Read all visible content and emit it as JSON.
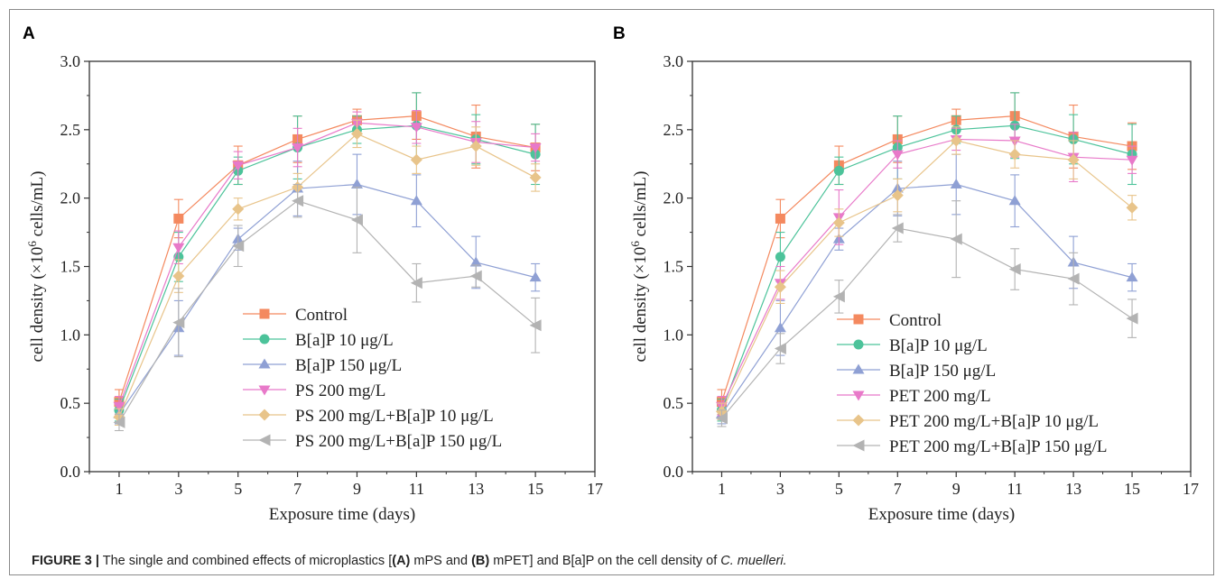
{
  "caption": {
    "figure_label": "FIGURE 3 |",
    "text_1": " The single and combined effects of microplastics [",
    "label_a": "(A)",
    "text_2": " mPS and ",
    "label_b": "(B)",
    "text_3": " mPET] and B[a]P on the cell density of ",
    "species": "C. muelleri.",
    "text_4": ""
  },
  "chart_data": [
    {
      "panel": "A",
      "type": "line",
      "xlabel": "Exposure time (days)",
      "ylabel_pre": "cell density (×10",
      "ylabel_sup": "6",
      "ylabel_post": " cells/mL)",
      "xlim": [
        0,
        17
      ],
      "ylim": [
        0,
        3.0
      ],
      "xticks": [
        1,
        3,
        5,
        7,
        9,
        11,
        13,
        15,
        17
      ],
      "yticks": [
        "0.0",
        "0.5",
        "1.0",
        "1.5",
        "2.0",
        "2.5",
        "3.0"
      ],
      "x": [
        1,
        3,
        5,
        7,
        9,
        11,
        13,
        15
      ],
      "legend_position": "bottom-center",
      "series": [
        {
          "name": "Control",
          "color": "#f4895f",
          "marker": "square",
          "values": [
            0.51,
            1.85,
            2.24,
            2.43,
            2.57,
            2.6,
            2.45,
            2.37
          ],
          "errors": [
            0.09,
            0.14,
            0.14,
            0.17,
            0.08,
            0.17,
            0.23,
            0.17
          ]
        },
        {
          "name": "B[a]P 10 μg/L",
          "color": "#4cc39a",
          "marker": "circle",
          "values": [
            0.45,
            1.57,
            2.2,
            2.37,
            2.5,
            2.53,
            2.43,
            2.32
          ],
          "errors": [
            0.08,
            0.18,
            0.1,
            0.23,
            0.1,
            0.24,
            0.18,
            0.22
          ]
        },
        {
          "name": "B[a]P 150 μg/L",
          "color": "#8fa0d4",
          "marker": "triangle-up",
          "values": [
            0.42,
            1.05,
            1.7,
            2.07,
            2.1,
            1.98,
            1.53,
            1.42
          ],
          "errors": [
            0.07,
            0.2,
            0.08,
            0.2,
            0.22,
            0.19,
            0.19,
            0.1
          ]
        },
        {
          "name": "PS 200 mg/L",
          "color": "#e879c9",
          "marker": "triangle-down",
          "values": [
            0.48,
            1.64,
            2.24,
            2.37,
            2.55,
            2.52,
            2.41,
            2.37
          ],
          "errors": [
            0.07,
            0.12,
            0.1,
            0.14,
            0.08,
            0.12,
            0.15,
            0.1
          ]
        },
        {
          "name": "PS 200 mg/L+B[a]P 10 μg/L",
          "color": "#e8c48a",
          "marker": "diamond",
          "values": [
            0.4,
            1.43,
            1.92,
            2.08,
            2.47,
            2.28,
            2.38,
            2.15
          ],
          "errors": [
            0.06,
            0.12,
            0.08,
            0.1,
            0.1,
            0.1,
            0.14,
            0.1
          ]
        },
        {
          "name": "PS 200 mg/L+B[a]P 150 μg/L",
          "color": "#b3b3b3",
          "marker": "triangle-left",
          "values": [
            0.36,
            1.09,
            1.65,
            1.98,
            1.84,
            1.38,
            1.43,
            1.07
          ],
          "errors": [
            0.06,
            0.25,
            0.15,
            0.12,
            0.24,
            0.14,
            0.08,
            0.2
          ]
        }
      ]
    },
    {
      "panel": "B",
      "type": "line",
      "xlabel": "Exposure time (days)",
      "ylabel_pre": "cell density (×10",
      "ylabel_sup": "6",
      "ylabel_post": " cells/mL)",
      "xlim": [
        0,
        17
      ],
      "ylim": [
        0,
        3.0
      ],
      "xticks": [
        1,
        3,
        5,
        7,
        9,
        11,
        13,
        15,
        17
      ],
      "yticks": [
        "0.0",
        "0.5",
        "1.0",
        "1.5",
        "2.0",
        "2.5",
        "3.0"
      ],
      "x": [
        1,
        3,
        5,
        7,
        9,
        11,
        13,
        15
      ],
      "legend_position": "bottom-center",
      "series": [
        {
          "name": "Control",
          "color": "#f4895f",
          "marker": "square",
          "values": [
            0.51,
            1.85,
            2.24,
            2.43,
            2.57,
            2.6,
            2.45,
            2.38
          ],
          "errors": [
            0.09,
            0.14,
            0.14,
            0.17,
            0.08,
            0.17,
            0.23,
            0.17
          ]
        },
        {
          "name": "B[a]P 10 μg/L",
          "color": "#4cc39a",
          "marker": "circle",
          "values": [
            0.45,
            1.57,
            2.2,
            2.37,
            2.5,
            2.53,
            2.43,
            2.32
          ],
          "errors": [
            0.08,
            0.18,
            0.1,
            0.23,
            0.1,
            0.24,
            0.18,
            0.22
          ]
        },
        {
          "name": "B[a]P 150 μg/L",
          "color": "#8fa0d4",
          "marker": "triangle-up",
          "values": [
            0.42,
            1.05,
            1.7,
            2.07,
            2.1,
            1.98,
            1.53,
            1.42
          ],
          "errors": [
            0.07,
            0.2,
            0.08,
            0.2,
            0.22,
            0.19,
            0.19,
            0.1
          ]
        },
        {
          "name": "PET 200 mg/L",
          "color": "#e879c9",
          "marker": "triangle-down",
          "values": [
            0.48,
            1.38,
            1.86,
            2.32,
            2.43,
            2.42,
            2.3,
            2.28
          ],
          "errors": [
            0.07,
            0.12,
            0.2,
            0.1,
            0.08,
            0.12,
            0.18,
            0.1
          ]
        },
        {
          "name": "PET 200 mg/L+B[a]P 10 μg/L",
          "color": "#e8c48a",
          "marker": "diamond",
          "values": [
            0.44,
            1.35,
            1.82,
            2.02,
            2.42,
            2.32,
            2.28,
            1.93
          ],
          "errors": [
            0.06,
            0.12,
            0.1,
            0.12,
            0.1,
            0.1,
            0.14,
            0.09
          ]
        },
        {
          "name": "PET 200 mg/L+B[a]P 150 μg/L",
          "color": "#b3b3b3",
          "marker": "triangle-left",
          "values": [
            0.39,
            0.9,
            1.28,
            1.78,
            1.7,
            1.48,
            1.41,
            1.12
          ],
          "errors": [
            0.06,
            0.11,
            0.12,
            0.1,
            0.28,
            0.15,
            0.19,
            0.14
          ]
        }
      ]
    }
  ]
}
